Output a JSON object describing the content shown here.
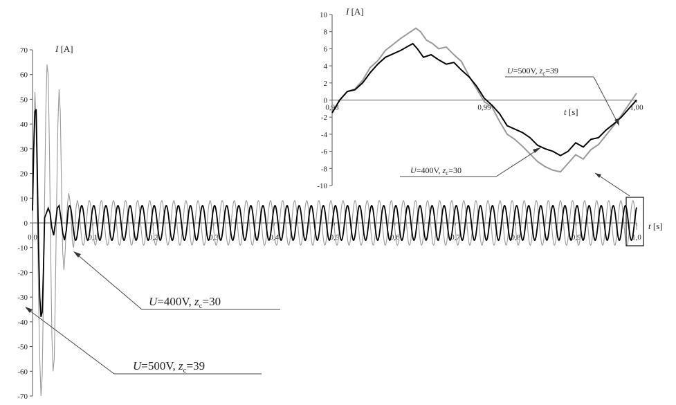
{
  "chart_data": [
    {
      "type": "line",
      "name": "main-chart",
      "ylabel_var": "I",
      "ylabel_unit": " [A]",
      "xlabel_var": "t",
      "xlabel_unit": " [s]",
      "xlim": [
        0,
        1.0
      ],
      "ylim": [
        -70,
        70
      ],
      "y_ticks": [
        70,
        60,
        50,
        40,
        30,
        20,
        10,
        0,
        -10,
        -20,
        -30,
        -40,
        -50,
        -60,
        -70
      ],
      "x_ticks": [
        "0,0",
        "0,1",
        "0,2",
        "0,3",
        "0,4",
        "0,5",
        "0,6",
        "0,7",
        "0,8",
        "0,9",
        "1,0"
      ],
      "grid": false,
      "series": [
        {
          "color": "#000000",
          "steady_amplitude": 7,
          "frequency_hz": 50,
          "transient": [
            [
              0.0,
              5
            ],
            [
              0.002,
              30
            ],
            [
              0.004,
              45
            ],
            [
              0.006,
              46
            ],
            [
              0.008,
              20
            ],
            [
              0.01,
              -10
            ],
            [
              0.012,
              -30
            ],
            [
              0.014,
              -38
            ],
            [
              0.016,
              -36
            ],
            [
              0.018,
              -20
            ],
            [
              0.02,
              2
            ],
            [
              0.023,
              4
            ],
            [
              0.026,
              6
            ],
            [
              0.029,
              4
            ],
            [
              0.032,
              -2
            ],
            [
              0.035,
              -5
            ],
            [
              0.038,
              0
            ],
            [
              0.041,
              6
            ],
            [
              0.044,
              7
            ],
            [
              0.047,
              2
            ],
            [
              0.05,
              -4
            ],
            [
              0.053,
              -7
            ],
            [
              0.056,
              -3
            ],
            [
              0.059,
              5
            ]
          ]
        },
        {
          "color": "#999999",
          "steady_amplitude": 9,
          "frequency_hz": 50,
          "transient": [
            [
              0.0,
              0
            ],
            [
              0.002,
              35
            ],
            [
              0.004,
              53
            ],
            [
              0.006,
              40
            ],
            [
              0.008,
              5
            ],
            [
              0.01,
              -30
            ],
            [
              0.012,
              -55
            ],
            [
              0.014,
              -70
            ],
            [
              0.016,
              -62
            ],
            [
              0.018,
              -30
            ],
            [
              0.02,
              10
            ],
            [
              0.022,
              45
            ],
            [
              0.024,
              64
            ],
            [
              0.026,
              60
            ],
            [
              0.028,
              30
            ],
            [
              0.03,
              -10
            ],
            [
              0.032,
              -45
            ],
            [
              0.034,
              -60
            ],
            [
              0.036,
              -55
            ],
            [
              0.038,
              -25
            ],
            [
              0.04,
              10
            ],
            [
              0.042,
              40
            ],
            [
              0.044,
              54
            ],
            [
              0.046,
              45
            ],
            [
              0.048,
              15
            ],
            [
              0.05,
              -12
            ],
            [
              0.052,
              -19
            ],
            [
              0.054,
              -12
            ],
            [
              0.056,
              0
            ],
            [
              0.058,
              8
            ],
            [
              0.06,
              12
            ],
            [
              0.062,
              9
            ],
            [
              0.064,
              2
            ],
            [
              0.066,
              -8
            ],
            [
              0.068,
              -10
            ],
            [
              0.07,
              -4
            ],
            [
              0.072,
              6
            ],
            [
              0.074,
              9
            ]
          ]
        }
      ],
      "annotations": [
        {
          "var1": "U",
          "text1": "=400V, ",
          "var2": "z",
          "sub": "c",
          "text2": "=30"
        },
        {
          "var1": "U",
          "text1": "=500V, ",
          "var2": "z",
          "sub": "c",
          "text2": "=39"
        }
      ]
    },
    {
      "type": "line",
      "name": "inset-chart",
      "ylabel_var": "I",
      "ylabel_unit": " [A]",
      "xlabel_var": "t",
      "xlabel_unit": " [s]",
      "xlim": [
        0.98,
        1.0
      ],
      "ylim": [
        -10,
        10
      ],
      "y_ticks": [
        10,
        8,
        6,
        4,
        2,
        0,
        -2,
        -4,
        -6,
        -8,
        -10
      ],
      "x_ticks": [
        "0,98",
        "0,99",
        "1,00"
      ],
      "grid": false,
      "series": [
        {
          "color": "#000000",
          "points": [
            [
              0.98,
              -1.5
            ],
            [
              0.9805,
              0.0
            ],
            [
              0.981,
              1.0
            ],
            [
              0.9815,
              1.2
            ],
            [
              0.982,
              2.0
            ],
            [
              0.9825,
              3.2
            ],
            [
              0.983,
              4.2
            ],
            [
              0.9835,
              5.0
            ],
            [
              0.984,
              5.4
            ],
            [
              0.9845,
              5.8
            ],
            [
              0.985,
              6.3
            ],
            [
              0.9853,
              6.6
            ],
            [
              0.9856,
              6.0
            ],
            [
              0.986,
              5.0
            ],
            [
              0.9865,
              5.3
            ],
            [
              0.987,
              4.7
            ],
            [
              0.9875,
              4.2
            ],
            [
              0.988,
              4.4
            ],
            [
              0.9885,
              3.5
            ],
            [
              0.989,
              2.7
            ],
            [
              0.9895,
              1.6
            ],
            [
              0.99,
              0.2
            ],
            [
              0.9905,
              -0.6
            ],
            [
              0.991,
              -1.6
            ],
            [
              0.9915,
              -3.0
            ],
            [
              0.992,
              -3.4
            ],
            [
              0.9925,
              -3.8
            ],
            [
              0.993,
              -4.4
            ],
            [
              0.9935,
              -5.3
            ],
            [
              0.994,
              -5.7
            ],
            [
              0.9945,
              -6.0
            ],
            [
              0.995,
              -6.5
            ],
            [
              0.9955,
              -6.0
            ],
            [
              0.996,
              -5.0
            ],
            [
              0.9965,
              -5.5
            ],
            [
              0.997,
              -4.6
            ],
            [
              0.9975,
              -4.4
            ],
            [
              0.998,
              -3.5
            ],
            [
              0.9985,
              -2.8
            ],
            [
              0.999,
              -2.0
            ],
            [
              0.9995,
              -1.0
            ],
            [
              1.0,
              0.0
            ]
          ]
        },
        {
          "color": "#999999",
          "points": [
            [
              0.98,
              -1.5
            ],
            [
              0.9805,
              0.0
            ],
            [
              0.981,
              1.0
            ],
            [
              0.9815,
              1.3
            ],
            [
              0.982,
              2.3
            ],
            [
              0.9825,
              3.8
            ],
            [
              0.983,
              4.6
            ],
            [
              0.9835,
              5.8
            ],
            [
              0.984,
              6.5
            ],
            [
              0.9845,
              7.2
            ],
            [
              0.985,
              7.8
            ],
            [
              0.9855,
              8.4
            ],
            [
              0.9858,
              8.0
            ],
            [
              0.9862,
              7.0
            ],
            [
              0.9866,
              6.6
            ],
            [
              0.987,
              6.0
            ],
            [
              0.9875,
              6.2
            ],
            [
              0.988,
              5.3
            ],
            [
              0.9885,
              4.5
            ],
            [
              0.989,
              2.8
            ],
            [
              0.9895,
              1.3
            ],
            [
              0.99,
              -0.2
            ],
            [
              0.9905,
              -0.8
            ],
            [
              0.991,
              -2.5
            ],
            [
              0.9915,
              -4.0
            ],
            [
              0.992,
              -4.6
            ],
            [
              0.9925,
              -5.4
            ],
            [
              0.993,
              -6.3
            ],
            [
              0.9935,
              -7.2
            ],
            [
              0.994,
              -7.8
            ],
            [
              0.9945,
              -8.2
            ],
            [
              0.995,
              -8.4
            ],
            [
              0.9955,
              -7.4
            ],
            [
              0.996,
              -6.4
            ],
            [
              0.9965,
              -6.9
            ],
            [
              0.997,
              -5.8
            ],
            [
              0.9975,
              -5.2
            ],
            [
              0.998,
              -4.1
            ],
            [
              0.9985,
              -3.0
            ],
            [
              0.999,
              -1.8
            ],
            [
              0.9995,
              -0.5
            ],
            [
              1.0,
              0.8
            ]
          ]
        }
      ],
      "annotations": [
        {
          "var1": "U",
          "text1": "=500V, ",
          "var2": "z",
          "sub": "c",
          "text2": "=39"
        },
        {
          "var1": "U",
          "text1": "=400V, ",
          "var2": "z",
          "sub": "c",
          "text2": "=30"
        }
      ]
    }
  ]
}
